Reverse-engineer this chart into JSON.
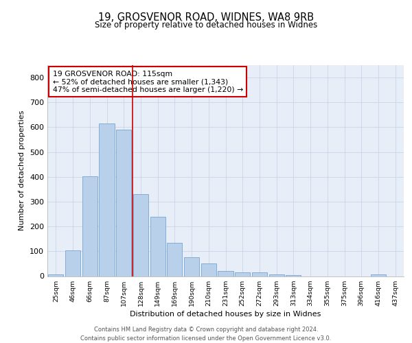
{
  "title1": "19, GROSVENOR ROAD, WIDNES, WA8 9RB",
  "title2": "Size of property relative to detached houses in Widnes",
  "xlabel": "Distribution of detached houses by size in Widnes",
  "ylabel": "Number of detached properties",
  "bin_labels": [
    "25sqm",
    "46sqm",
    "66sqm",
    "87sqm",
    "107sqm",
    "128sqm",
    "149sqm",
    "169sqm",
    "190sqm",
    "210sqm",
    "231sqm",
    "252sqm",
    "272sqm",
    "293sqm",
    "313sqm",
    "334sqm",
    "355sqm",
    "375sqm",
    "396sqm",
    "416sqm",
    "437sqm"
  ],
  "bar_values": [
    7,
    105,
    402,
    614,
    590,
    330,
    238,
    135,
    75,
    50,
    22,
    16,
    15,
    6,
    5,
    0,
    0,
    0,
    0,
    8,
    0
  ],
  "bar_color": "#b8d0ea",
  "bar_edge_color": "#6699cc",
  "vline_x": 4.5,
  "vline_color": "#cc0000",
  "annotation_text": "19 GROSVENOR ROAD: 115sqm\n← 52% of detached houses are smaller (1,343)\n47% of semi-detached houses are larger (1,220) →",
  "annotation_box_facecolor": "#ffffff",
  "annotation_box_edgecolor": "#cc0000",
  "ylim": [
    0,
    850
  ],
  "yticks": [
    0,
    100,
    200,
    300,
    400,
    500,
    600,
    700,
    800
  ],
  "footer": "Contains HM Land Registry data © Crown copyright and database right 2024.\nContains public sector information licensed under the Open Government Licence v3.0.",
  "plot_bg": "#e8eef8",
  "fig_bg": "#ffffff",
  "grid_color": "#c8d4e8"
}
